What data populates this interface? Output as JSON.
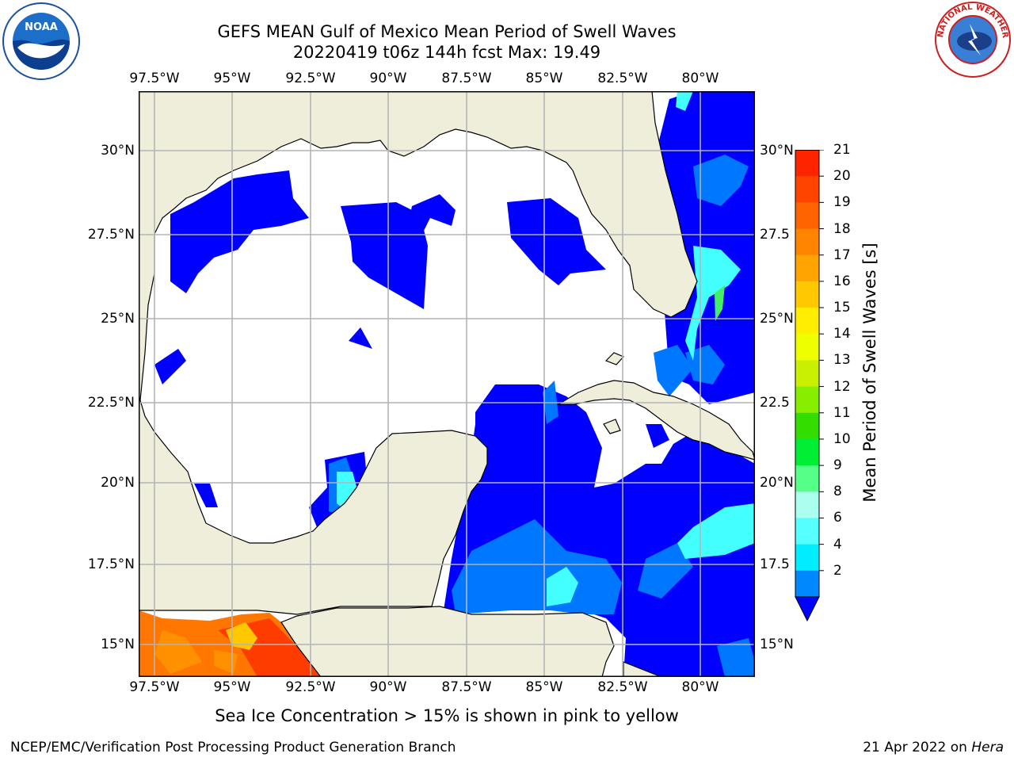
{
  "title": {
    "line1": "GEFS MEAN Gulf of Mexico Mean Period of Swell Waves",
    "line2": "20220419 t06z 144h fcst   Max: 19.49"
  },
  "axes": {
    "lon_labels": [
      "97.5°W",
      "95°W",
      "92.5°W",
      "90°W",
      "87.5°W",
      "85°W",
      "82.5°W",
      "80°W"
    ],
    "lat_labels_left": [
      "30°N",
      "27.5°N",
      "25°N",
      "22.5°N",
      "20°N",
      "17.5°N",
      "15°N"
    ],
    "lat_labels_right": [
      "30°N",
      "27.5",
      "25°N",
      "22.5",
      "20°N",
      "17.5",
      "15°N"
    ]
  },
  "colorbar": {
    "label": "Mean Period of Swell Waves [s]",
    "ticks": [
      "21",
      "20",
      "19",
      "18",
      "17",
      "16",
      "15",
      "14",
      "13",
      "12",
      "11",
      "10",
      "9",
      "8",
      "6",
      "4",
      "2"
    ],
    "colors": [
      "#ff2400",
      "#ff4400",
      "#ff6400",
      "#ff8400",
      "#ffa400",
      "#ffc800",
      "#ffee00",
      "#eeff00",
      "#c8f000",
      "#88ee00",
      "#33dd00",
      "#00ee33",
      "#55ff88",
      "#aaffee",
      "#55ffff",
      "#00eeff",
      "#0088ff"
    ],
    "extend_color": "#0000ff"
  },
  "colors": {
    "land": "#efeedb",
    "swell_low": "#0000ff",
    "swell_mid": "#0077ff",
    "swell_cyan": "#44ffff",
    "swell_green": "#44ee66",
    "swell_high": "#ff7700",
    "grid": "#b4b4b4"
  },
  "note": "Sea Ice Concentration > 15% is shown in pink to yellow",
  "footer": {
    "left": "NCEP/EMC/Verification Post Processing Product Generation Branch",
    "date": "21 Apr 2022 on ",
    "machine": "Hera"
  },
  "logos": {
    "left": "NOAA",
    "right_text": "NATIONAL WEATHER SERVICE"
  }
}
